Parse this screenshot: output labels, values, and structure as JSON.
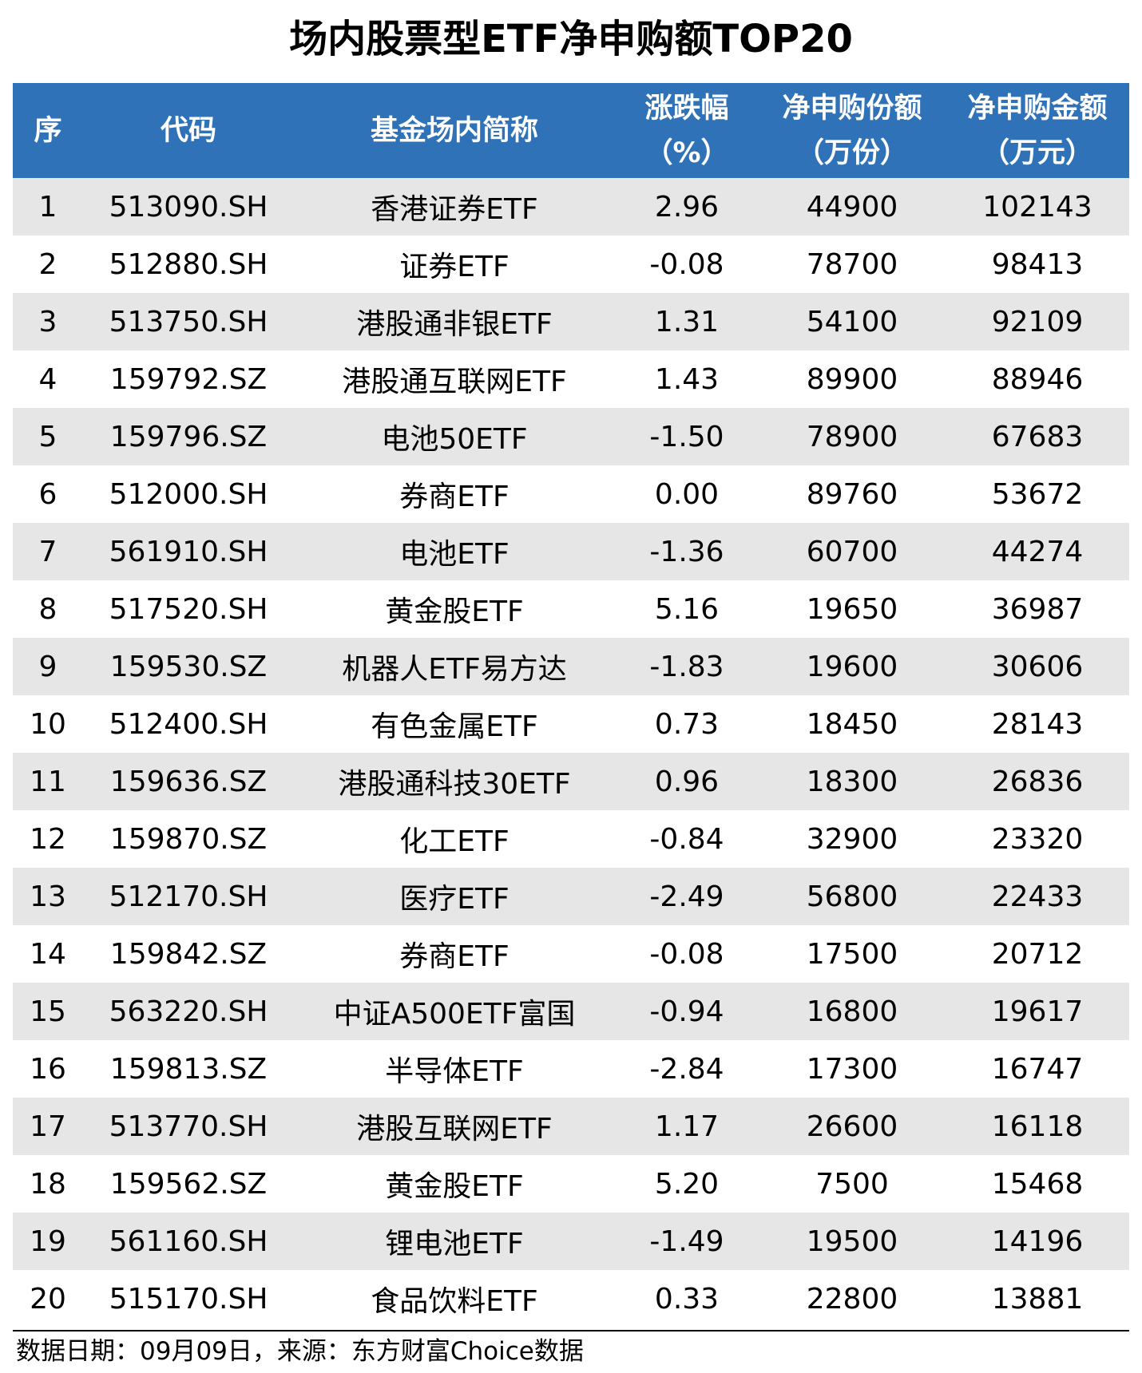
{
  "title": "场内股票型ETF净申购额TOP20",
  "chart_data": {
    "type": "table",
    "columns": [
      {
        "line1": "序",
        "line2": ""
      },
      {
        "line1": "代码",
        "line2": ""
      },
      {
        "line1": "基金场内简称",
        "line2": ""
      },
      {
        "line1": "涨跌幅",
        "line2": "（%）"
      },
      {
        "line1": "净申购份额",
        "line2": "（万份）"
      },
      {
        "line1": "净申购金额",
        "line2": "（万元）"
      }
    ],
    "rows": [
      [
        "1",
        "513090.SH",
        "香港证券ETF",
        "2.96",
        "44900",
        "102143"
      ],
      [
        "2",
        "512880.SH",
        "证券ETF",
        "-0.08",
        "78700",
        "98413"
      ],
      [
        "3",
        "513750.SH",
        "港股通非银ETF",
        "1.31",
        "54100",
        "92109"
      ],
      [
        "4",
        "159792.SZ",
        "港股通互联网ETF",
        "1.43",
        "89900",
        "88946"
      ],
      [
        "5",
        "159796.SZ",
        "电池50ETF",
        "-1.50",
        "78900",
        "67683"
      ],
      [
        "6",
        "512000.SH",
        "券商ETF",
        "0.00",
        "89760",
        "53672"
      ],
      [
        "7",
        "561910.SH",
        "电池ETF",
        "-1.36",
        "60700",
        "44274"
      ],
      [
        "8",
        "517520.SH",
        "黄金股ETF",
        "5.16",
        "19650",
        "36987"
      ],
      [
        "9",
        "159530.SZ",
        "机器人ETF易方达",
        "-1.83",
        "19600",
        "30606"
      ],
      [
        "10",
        "512400.SH",
        "有色金属ETF",
        "0.73",
        "18450",
        "28143"
      ],
      [
        "11",
        "159636.SZ",
        "港股通科技30ETF",
        "0.96",
        "18300",
        "26836"
      ],
      [
        "12",
        "159870.SZ",
        "化工ETF",
        "-0.84",
        "32900",
        "23320"
      ],
      [
        "13",
        "512170.SH",
        "医疗ETF",
        "-2.49",
        "56800",
        "22433"
      ],
      [
        "14",
        "159842.SZ",
        "券商ETF",
        "-0.08",
        "17500",
        "20712"
      ],
      [
        "15",
        "563220.SH",
        "中证A500ETF富国",
        "-0.94",
        "16800",
        "19617"
      ],
      [
        "16",
        "159813.SZ",
        "半导体ETF",
        "-2.84",
        "17300",
        "16747"
      ],
      [
        "17",
        "513770.SH",
        "港股互联网ETF",
        "1.17",
        "26600",
        "16118"
      ],
      [
        "18",
        "159562.SZ",
        "黄金股ETF",
        "5.20",
        "7500",
        "15468"
      ],
      [
        "19",
        "561160.SH",
        "锂电池ETF",
        "-1.49",
        "19500",
        "14196"
      ],
      [
        "20",
        "515170.SH",
        "食品饮料ETF",
        "0.33",
        "22800",
        "13881"
      ]
    ]
  },
  "footer": "数据日期：09月09日，来源：东方财富Choice数据",
  "colors": {
    "header_bg": "#2f72b8",
    "header_text": "#ffffff",
    "row_alt_bg": "#e6e6e6",
    "row_bg": "#ffffff"
  }
}
